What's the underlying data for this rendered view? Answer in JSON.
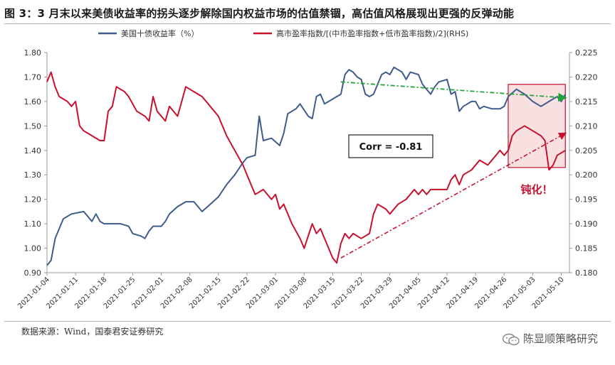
{
  "page": {
    "title": "图 3：3 月末以来美债收益率的拐头逐步解除国内权益市场的估值禁锢，高估值风格展现出更强的反弹动能",
    "source": "数据来源：Wind，国泰君安证券研究",
    "watermark": "陈显顺策略研究"
  },
  "chart_data": {
    "type": "line",
    "title": "",
    "xlabel": "",
    "ylabel": "",
    "ylim": [
      0.9,
      1.8
    ],
    "y2lim": [
      0.18,
      0.225
    ],
    "yticks": [
      "1.80",
      "1.70",
      "1.60",
      "1.50",
      "1.40",
      "1.30",
      "1.20",
      "1.10",
      "1.00",
      "0.90"
    ],
    "y2ticks": [
      "0.225",
      "0.220",
      "0.215",
      "0.210",
      "0.205",
      "0.200",
      "0.195",
      "0.190",
      "0.185",
      "0.180"
    ],
    "xticks": [
      "2021-01-04",
      "2021-01-11",
      "2021-01-18",
      "2021-01-25",
      "2021-02-01",
      "2021-02-08",
      "2021-02-15",
      "2021-02-22",
      "2021-03-01",
      "2021-03-08",
      "2021-03-15",
      "2021-03-22",
      "2021-03-29",
      "2021-04-05",
      "2021-04-12",
      "2021-04-19",
      "2021-04-26",
      "2021-05-03",
      "2021-05-10"
    ],
    "legend_position": "top",
    "grid": false,
    "series": [
      {
        "name": "美国十债收益率（%）",
        "axis": "left",
        "color": "#3f5b8c",
        "points": [
          [
            "2021-01-04",
            0.93
          ],
          [
            "2021-01-05",
            0.95
          ],
          [
            "2021-01-06",
            1.04
          ],
          [
            "2021-01-07",
            1.08
          ],
          [
            "2021-01-08",
            1.12
          ],
          [
            "2021-01-10",
            1.14
          ],
          [
            "2021-01-13",
            1.15
          ],
          [
            "2021-01-14",
            1.13
          ],
          [
            "2021-01-15",
            1.11
          ],
          [
            "2021-01-16",
            1.14
          ],
          [
            "2021-01-17",
            1.11
          ],
          [
            "2021-01-18",
            1.1
          ],
          [
            "2021-01-20",
            1.1
          ],
          [
            "2021-01-22",
            1.1
          ],
          [
            "2021-01-24",
            1.09
          ],
          [
            "2021-01-25",
            1.06
          ],
          [
            "2021-01-27",
            1.05
          ],
          [
            "2021-01-28",
            1.04
          ],
          [
            "2021-01-29",
            1.07
          ],
          [
            "2021-01-30",
            1.09
          ],
          [
            "2021-02-01",
            1.09
          ],
          [
            "2021-02-02",
            1.11
          ],
          [
            "2021-02-03",
            1.14
          ],
          [
            "2021-02-05",
            1.17
          ],
          [
            "2021-02-07",
            1.19
          ],
          [
            "2021-02-09",
            1.19
          ],
          [
            "2021-02-10",
            1.17
          ],
          [
            "2021-02-11",
            1.15
          ],
          [
            "2021-02-13",
            1.18
          ],
          [
            "2021-02-15",
            1.21
          ],
          [
            "2021-02-17",
            1.26
          ],
          [
            "2021-02-19",
            1.3
          ],
          [
            "2021-02-21",
            1.35
          ],
          [
            "2021-02-22",
            1.37
          ],
          [
            "2021-02-24",
            1.38
          ],
          [
            "2021-02-25",
            1.54
          ],
          [
            "2021-02-26",
            1.44
          ],
          [
            "2021-02-28",
            1.45
          ],
          [
            "2021-03-02",
            1.42
          ],
          [
            "2021-03-03",
            1.47
          ],
          [
            "2021-03-04",
            1.55
          ],
          [
            "2021-03-06",
            1.57
          ],
          [
            "2021-03-07",
            1.59
          ],
          [
            "2021-03-09",
            1.54
          ],
          [
            "2021-03-10",
            1.53
          ],
          [
            "2021-03-11",
            1.62
          ],
          [
            "2021-03-12",
            1.63
          ],
          [
            "2021-03-13",
            1.59
          ],
          [
            "2021-03-14",
            1.6
          ],
          [
            "2021-03-16",
            1.62
          ],
          [
            "2021-03-17",
            1.63
          ],
          [
            "2021-03-18",
            1.71
          ],
          [
            "2021-03-19",
            1.73
          ],
          [
            "2021-03-20",
            1.72
          ],
          [
            "2021-03-21",
            1.7
          ],
          [
            "2021-03-22",
            1.69
          ],
          [
            "2021-03-23",
            1.63
          ],
          [
            "2021-03-24",
            1.62
          ],
          [
            "2021-03-25",
            1.63
          ],
          [
            "2021-03-26",
            1.67
          ],
          [
            "2021-03-27",
            1.71
          ],
          [
            "2021-03-28",
            1.72
          ],
          [
            "2021-03-29",
            1.71
          ],
          [
            "2021-03-30",
            1.74
          ],
          [
            "2021-03-31",
            1.73
          ],
          [
            "2021-04-01",
            1.72
          ],
          [
            "2021-04-02",
            1.69
          ],
          [
            "2021-04-03",
            1.72
          ],
          [
            "2021-04-05",
            1.71
          ],
          [
            "2021-04-06",
            1.67
          ],
          [
            "2021-04-07",
            1.65
          ],
          [
            "2021-04-08",
            1.63
          ],
          [
            "2021-04-09",
            1.66
          ],
          [
            "2021-04-10",
            1.68
          ],
          [
            "2021-04-12",
            1.69
          ],
          [
            "2021-04-13",
            1.63
          ],
          [
            "2021-04-14",
            1.64
          ],
          [
            "2021-04-15",
            1.56
          ],
          [
            "2021-04-16",
            1.58
          ],
          [
            "2021-04-18",
            1.6
          ],
          [
            "2021-04-19",
            1.6
          ],
          [
            "2021-04-20",
            1.57
          ],
          [
            "2021-04-21",
            1.58
          ],
          [
            "2021-04-23",
            1.57
          ],
          [
            "2021-04-25",
            1.57
          ],
          [
            "2021-04-26",
            1.58
          ],
          [
            "2021-04-27",
            1.62
          ],
          [
            "2021-04-29",
            1.65
          ],
          [
            "2021-05-01",
            1.63
          ],
          [
            "2021-05-03",
            1.6
          ],
          [
            "2021-05-05",
            1.58
          ],
          [
            "2021-05-07",
            1.6
          ],
          [
            "2021-05-09",
            1.62
          ],
          [
            "2021-05-10",
            1.6
          ],
          [
            "2021-05-11",
            1.63
          ]
        ]
      },
      {
        "name": "高市盈率指数/[(中市盈率指数+低市盈率指数)/2](RHS)",
        "axis": "right",
        "color": "#c8102e",
        "points": [
          [
            "2021-01-04",
            0.219
          ],
          [
            "2021-01-05",
            0.221
          ],
          [
            "2021-01-06",
            0.218
          ],
          [
            "2021-01-07",
            0.216
          ],
          [
            "2021-01-09",
            0.215
          ],
          [
            "2021-01-10",
            0.214
          ],
          [
            "2021-01-11",
            0.215
          ],
          [
            "2021-01-12",
            0.21
          ],
          [
            "2021-01-13",
            0.209
          ],
          [
            "2021-01-15",
            0.208
          ],
          [
            "2021-01-17",
            0.207
          ],
          [
            "2021-01-18",
            0.207
          ],
          [
            "2021-01-19",
            0.213
          ],
          [
            "2021-01-20",
            0.214
          ],
          [
            "2021-01-21",
            0.218
          ],
          [
            "2021-01-23",
            0.217
          ],
          [
            "2021-01-24",
            0.216
          ],
          [
            "2021-01-26",
            0.213
          ],
          [
            "2021-01-28",
            0.212
          ],
          [
            "2021-01-29",
            0.211
          ],
          [
            "2021-01-30",
            0.216
          ],
          [
            "2021-01-31",
            0.213
          ],
          [
            "2021-02-01",
            0.212
          ],
          [
            "2021-02-02",
            0.211
          ],
          [
            "2021-02-03",
            0.214
          ],
          [
            "2021-02-05",
            0.212
          ],
          [
            "2021-02-07",
            0.218
          ],
          [
            "2021-02-09",
            0.217
          ],
          [
            "2021-02-11",
            0.216
          ],
          [
            "2021-02-13",
            0.214
          ],
          [
            "2021-02-15",
            0.212
          ],
          [
            "2021-02-17",
            0.208
          ],
          [
            "2021-02-19",
            0.205
          ],
          [
            "2021-02-21",
            0.202
          ],
          [
            "2021-02-23",
            0.198
          ],
          [
            "2021-02-24",
            0.196
          ],
          [
            "2021-02-26",
            0.197
          ],
          [
            "2021-02-28",
            0.195
          ],
          [
            "2021-03-01",
            0.196
          ],
          [
            "2021-03-02",
            0.193
          ],
          [
            "2021-03-03",
            0.194
          ],
          [
            "2021-03-05",
            0.19
          ],
          [
            "2021-03-07",
            0.187
          ],
          [
            "2021-03-08",
            0.185
          ],
          [
            "2021-03-10",
            0.19
          ],
          [
            "2021-03-11",
            0.188
          ],
          [
            "2021-03-12",
            0.189
          ],
          [
            "2021-03-14",
            0.185
          ],
          [
            "2021-03-15",
            0.183
          ],
          [
            "2021-03-16",
            0.182
          ],
          [
            "2021-03-17",
            0.186
          ],
          [
            "2021-03-18",
            0.188
          ],
          [
            "2021-03-19",
            0.187
          ],
          [
            "2021-03-20",
            0.188
          ],
          [
            "2021-03-22",
            0.187
          ],
          [
            "2021-03-24",
            0.188
          ],
          [
            "2021-03-25",
            0.192
          ],
          [
            "2021-03-26",
            0.194
          ],
          [
            "2021-03-28",
            0.193
          ],
          [
            "2021-03-29",
            0.192
          ],
          [
            "2021-03-31",
            0.194
          ],
          [
            "2021-04-02",
            0.195
          ],
          [
            "2021-04-04",
            0.197
          ],
          [
            "2021-04-05",
            0.196
          ],
          [
            "2021-04-06",
            0.197
          ],
          [
            "2021-04-07",
            0.196
          ],
          [
            "2021-04-08",
            0.197
          ],
          [
            "2021-04-10",
            0.197
          ],
          [
            "2021-04-12",
            0.197
          ],
          [
            "2021-04-13",
            0.199
          ],
          [
            "2021-04-14",
            0.2
          ],
          [
            "2021-04-15",
            0.198
          ],
          [
            "2021-04-16",
            0.2
          ],
          [
            "2021-04-18",
            0.201
          ],
          [
            "2021-04-20",
            0.203
          ],
          [
            "2021-04-22",
            0.202
          ],
          [
            "2021-04-24",
            0.204
          ],
          [
            "2021-04-25",
            0.205
          ],
          [
            "2021-04-26",
            0.204
          ],
          [
            "2021-04-27",
            0.205
          ],
          [
            "2021-04-28",
            0.208
          ],
          [
            "2021-04-29",
            0.209
          ],
          [
            "2021-05-01",
            0.21
          ],
          [
            "2021-05-03",
            0.209
          ],
          [
            "2021-05-05",
            0.208
          ],
          [
            "2021-05-06",
            0.207
          ],
          [
            "2021-05-07",
            0.201
          ],
          [
            "2021-05-08",
            0.202
          ],
          [
            "2021-05-09",
            0.204
          ],
          [
            "2021-05-11",
            0.205
          ]
        ]
      }
    ],
    "annotations": {
      "corr_label": "Corr = -0.81",
      "blunting_label": "钝化！",
      "trend_blue": {
        "from": [
          "2021-03-17",
          1.68
        ],
        "to": [
          "2021-05-11",
          1.615
        ],
        "color": "#22a33a"
      },
      "trend_red": {
        "from": [
          "2021-03-17",
          0.183
        ],
        "to": [
          "2021-05-11",
          0.2085
        ],
        "color": "#c8102e"
      },
      "highlight": {
        "x_from": "2021-04-27",
        "x_to": "2021-05-11",
        "y2_from": 0.2015,
        "y2_to": 0.2185
      }
    }
  }
}
